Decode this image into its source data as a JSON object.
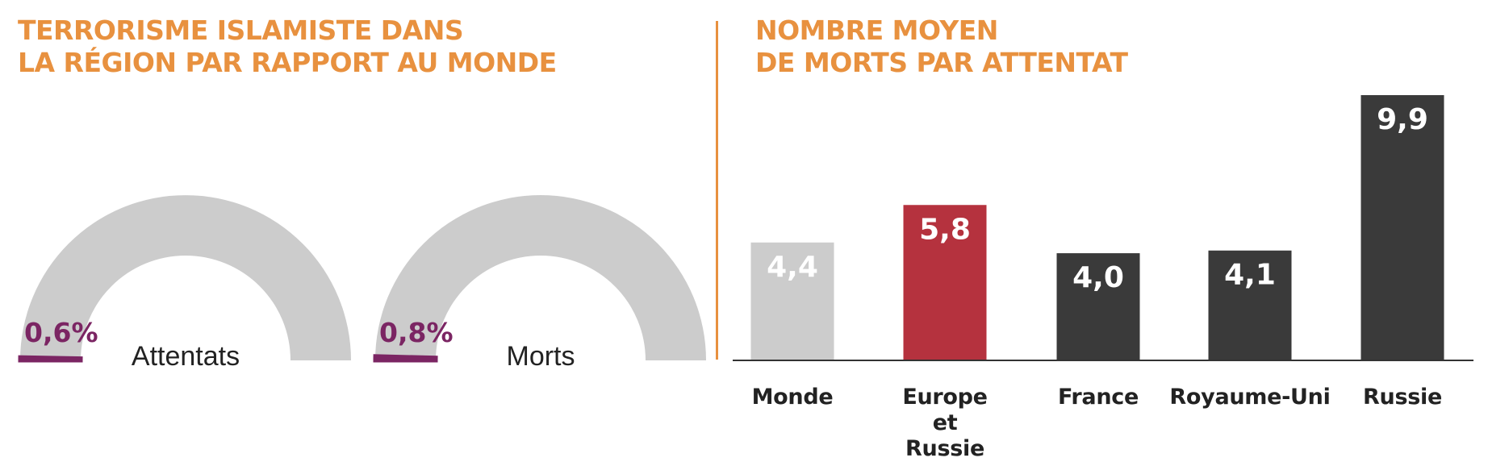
{
  "left_panel": {
    "title_lines": [
      "TERRORISME ISLAMISTE DANS",
      "LA RÉGION PAR RAPPORT AU MONDE"
    ]
  },
  "right_panel": {
    "title_lines": [
      "NOMBRE MOYEN",
      "DE MORTS PAR ATTENTAT"
    ]
  },
  "colors": {
    "title": "#e8913f",
    "gauge_track": "#cccccc",
    "gauge_fill": "#7b2563",
    "bar_world": "#cccccc",
    "bar_europe_russia": "#b5323e",
    "bar_other": "#3a3a3a",
    "axis": "#333333"
  },
  "chart_data": [
    {
      "type": "pie",
      "subtype": "half-donut gauge",
      "label": "Attentats",
      "value": 0.6,
      "value_text": "0,6%",
      "unit": "%"
    },
    {
      "type": "pie",
      "subtype": "half-donut gauge",
      "label": "Morts",
      "value": 0.8,
      "value_text": "0,8%",
      "unit": "%"
    },
    {
      "type": "bar",
      "categories": [
        [
          "Monde"
        ],
        [
          "Europe",
          "et",
          "Russie"
        ],
        [
          "France"
        ],
        [
          "Royaume-Uni"
        ],
        [
          "Russie"
        ]
      ],
      "values": [
        4.4,
        5.8,
        4.0,
        4.1,
        9.9
      ],
      "value_labels": [
        "4,4",
        "5,8",
        "4,0",
        "4,1",
        "9,9"
      ],
      "bar_colors": [
        "#cccccc",
        "#b5323e",
        "#3a3a3a",
        "#3a3a3a",
        "#3a3a3a"
      ],
      "ylim": [
        0,
        10.2
      ]
    }
  ]
}
